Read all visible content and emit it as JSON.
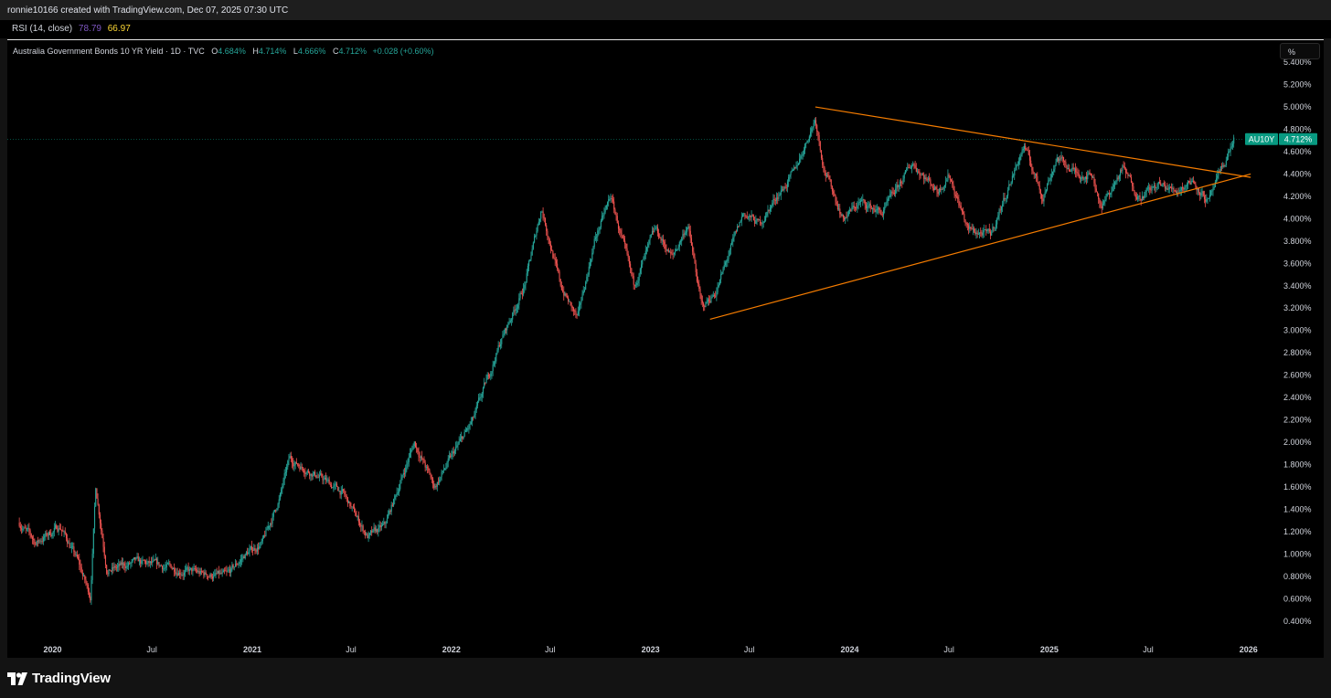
{
  "header": {
    "credit": "ronnie10166 created with TradingView.com, Dec 07, 2025 07:30 UTC"
  },
  "indicator": {
    "name": "RSI (14, close)",
    "value1": "78.79",
    "value2": "66.97",
    "value1_color": "#7e57c2",
    "value2_color": "#fdd835"
  },
  "legend": {
    "symbol": "Australia Government Bonds 10 YR Yield · 1D · TVC",
    "open_label": "O",
    "open": "4.684%",
    "high_label": "H",
    "high": "4.714%",
    "low_label": "L",
    "low": "4.666%",
    "close_label": "C",
    "close": "4.712%",
    "change": "+0.028 (+0.60%)"
  },
  "scale_button": "%",
  "price_tag": {
    "symbol": "AU10Y",
    "value": "4.712%",
    "color": "#089981"
  },
  "footer": {
    "brand": "TradingView",
    "logo_icon": "tradingview-logo-icon"
  },
  "colors": {
    "background": "#000000",
    "up_candle": "#26a69a",
    "down_candle": "#ef5350",
    "trendline": "#f57c00"
  },
  "chart_data": {
    "type": "candlestick",
    "title": "Australia Government Bonds 10 YR Yield",
    "y_unit": "%",
    "ylim": [
      0.3,
      5.45
    ],
    "y_ticks": [
      "5.400%",
      "5.200%",
      "5.000%",
      "4.800%",
      "4.600%",
      "4.400%",
      "4.200%",
      "4.000%",
      "3.800%",
      "3.600%",
      "3.400%",
      "3.200%",
      "3.000%",
      "2.800%",
      "2.600%",
      "2.400%",
      "2.200%",
      "2.000%",
      "1.800%",
      "1.600%",
      "1.400%",
      "1.200%",
      "1.000%",
      "0.800%",
      "0.600%",
      "0.400%"
    ],
    "x_ticks": [
      {
        "label": "2020",
        "date": "2020-01-01",
        "year": true
      },
      {
        "label": "Jul",
        "date": "2020-07-01",
        "year": false
      },
      {
        "label": "2021",
        "date": "2021-01-01",
        "year": true
      },
      {
        "label": "Jul",
        "date": "2021-07-01",
        "year": false
      },
      {
        "label": "2022",
        "date": "2022-01-01",
        "year": true
      },
      {
        "label": "Jul",
        "date": "2022-07-01",
        "year": false
      },
      {
        "label": "2023",
        "date": "2023-01-01",
        "year": true
      },
      {
        "label": "Jul",
        "date": "2023-07-01",
        "year": false
      },
      {
        "label": "2024",
        "date": "2024-01-01",
        "year": true
      },
      {
        "label": "Jul",
        "date": "2024-07-01",
        "year": false
      },
      {
        "label": "2025",
        "date": "2025-01-01",
        "year": true
      },
      {
        "label": "Jul",
        "date": "2025-07-01",
        "year": false
      },
      {
        "label": "2026",
        "date": "2026-01-01",
        "year": true
      }
    ],
    "last_value": 4.712,
    "price_path": [
      {
        "date": "2019-11-01",
        "y": 1.28
      },
      {
        "date": "2019-12-01",
        "y": 1.1
      },
      {
        "date": "2020-01-15",
        "y": 1.25
      },
      {
        "date": "2020-02-15",
        "y": 0.95
      },
      {
        "date": "2020-03-10",
        "y": 0.62
      },
      {
        "date": "2020-03-20",
        "y": 1.6
      },
      {
        "date": "2020-04-10",
        "y": 0.85
      },
      {
        "date": "2020-06-01",
        "y": 0.92
      },
      {
        "date": "2020-08-01",
        "y": 0.88
      },
      {
        "date": "2020-10-01",
        "y": 0.82
      },
      {
        "date": "2020-11-15",
        "y": 0.8
      },
      {
        "date": "2020-12-20",
        "y": 1.0
      },
      {
        "date": "2021-01-20",
        "y": 1.1
      },
      {
        "date": "2021-02-20",
        "y": 1.5
      },
      {
        "date": "2021-03-10",
        "y": 1.85
      },
      {
        "date": "2021-05-01",
        "y": 1.7
      },
      {
        "date": "2021-06-15",
        "y": 1.55
      },
      {
        "date": "2021-08-01",
        "y": 1.15
      },
      {
        "date": "2021-09-01",
        "y": 1.25
      },
      {
        "date": "2021-10-25",
        "y": 2.0
      },
      {
        "date": "2021-12-01",
        "y": 1.6
      },
      {
        "date": "2022-01-05",
        "y": 1.9
      },
      {
        "date": "2022-02-10",
        "y": 2.2
      },
      {
        "date": "2022-04-01",
        "y": 2.9
      },
      {
        "date": "2022-05-15",
        "y": 3.4
      },
      {
        "date": "2022-06-15",
        "y": 4.1
      },
      {
        "date": "2022-07-20",
        "y": 3.4
      },
      {
        "date": "2022-08-20",
        "y": 3.1
      },
      {
        "date": "2022-09-20",
        "y": 3.8
      },
      {
        "date": "2022-10-20",
        "y": 4.2
      },
      {
        "date": "2022-12-01",
        "y": 3.4
      },
      {
        "date": "2023-01-10",
        "y": 3.9
      },
      {
        "date": "2023-02-10",
        "y": 3.65
      },
      {
        "date": "2023-03-10",
        "y": 3.95
      },
      {
        "date": "2023-04-05",
        "y": 3.2
      },
      {
        "date": "2023-05-01",
        "y": 3.35
      },
      {
        "date": "2023-06-20",
        "y": 4.05
      },
      {
        "date": "2023-07-20",
        "y": 3.95
      },
      {
        "date": "2023-08-20",
        "y": 4.2
      },
      {
        "date": "2023-09-20",
        "y": 4.4
      },
      {
        "date": "2023-10-30",
        "y": 4.9
      },
      {
        "date": "2023-11-15",
        "y": 4.45
      },
      {
        "date": "2023-12-20",
        "y": 4.0
      },
      {
        "date": "2024-01-20",
        "y": 4.15
      },
      {
        "date": "2024-03-01",
        "y": 4.05
      },
      {
        "date": "2024-04-25",
        "y": 4.5
      },
      {
        "date": "2024-06-10",
        "y": 4.25
      },
      {
        "date": "2024-07-01",
        "y": 4.4
      },
      {
        "date": "2024-08-05",
        "y": 3.9
      },
      {
        "date": "2024-09-15",
        "y": 3.85
      },
      {
        "date": "2024-11-15",
        "y": 4.65
      },
      {
        "date": "2024-12-20",
        "y": 4.2
      },
      {
        "date": "2025-01-15",
        "y": 4.55
      },
      {
        "date": "2025-02-20",
        "y": 4.4
      },
      {
        "date": "2025-03-20",
        "y": 4.4
      },
      {
        "date": "2025-04-07",
        "y": 4.1
      },
      {
        "date": "2025-05-15",
        "y": 4.45
      },
      {
        "date": "2025-06-15",
        "y": 4.2
      },
      {
        "date": "2025-07-20",
        "y": 4.3
      },
      {
        "date": "2025-08-20",
        "y": 4.25
      },
      {
        "date": "2025-09-20",
        "y": 4.35
      },
      {
        "date": "2025-10-20",
        "y": 4.15
      },
      {
        "date": "2025-11-10",
        "y": 4.4
      },
      {
        "date": "2025-12-05",
        "y": 4.712
      }
    ],
    "trendlines": [
      {
        "name": "upper",
        "from": {
          "date": "2023-10-30",
          "y": 5.0
        },
        "to": {
          "date": "2026-01-05",
          "y": 4.37
        }
      },
      {
        "name": "lower",
        "from": {
          "date": "2023-04-20",
          "y": 3.1
        },
        "to": {
          "date": "2026-01-05",
          "y": 4.4
        }
      }
    ]
  }
}
